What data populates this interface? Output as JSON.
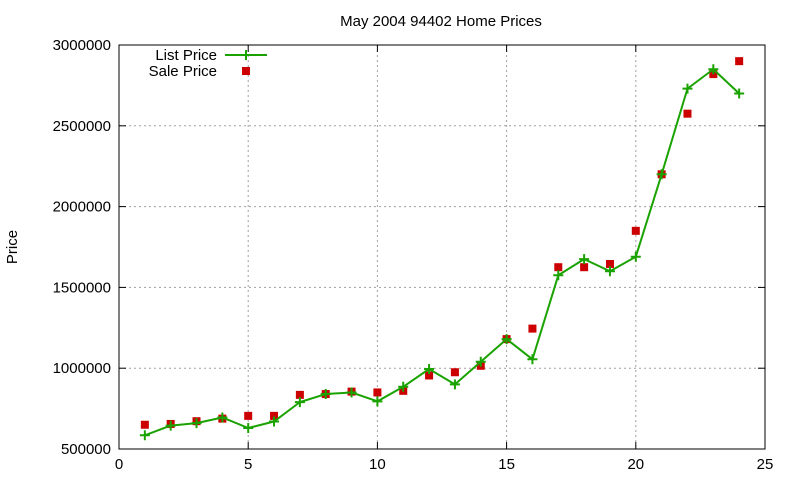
{
  "chart_data": {
    "type": "line",
    "title": "May 2004 94402 Home Prices",
    "xlabel": "",
    "ylabel": "Price",
    "xlim": [
      0,
      25
    ],
    "ylim": [
      500000,
      3000000
    ],
    "xticks": [
      0,
      5,
      10,
      15,
      20,
      25
    ],
    "yticks": [
      500000,
      1000000,
      1500000,
      2000000,
      2500000,
      3000000
    ],
    "grid": true,
    "legend_position": "top-left",
    "x": [
      1,
      2,
      3,
      4,
      5,
      6,
      7,
      8,
      9,
      10,
      11,
      12,
      13,
      14,
      15,
      16,
      17,
      18,
      19,
      20,
      21,
      22,
      23,
      24
    ],
    "series": [
      {
        "name": "List Price",
        "style": "lines+markers",
        "marker": "plus",
        "color": "#1aa300",
        "values": [
          585000,
          645000,
          660000,
          695000,
          630000,
          670000,
          790000,
          840000,
          850000,
          795000,
          885000,
          995000,
          900000,
          1040000,
          1180000,
          1055000,
          1575000,
          1675000,
          1600000,
          1690000,
          2200000,
          2730000,
          2850000,
          2700000
        ]
      },
      {
        "name": "Sale Price",
        "style": "markers",
        "marker": "square",
        "color": "#cc0000",
        "values": [
          650000,
          655000,
          672000,
          688000,
          705000,
          705000,
          835000,
          840000,
          855000,
          850000,
          860000,
          955000,
          975000,
          1015000,
          1180000,
          1245000,
          1625000,
          1625000,
          1645000,
          1850000,
          2200000,
          2575000,
          2820000,
          2900000
        ]
      }
    ]
  }
}
